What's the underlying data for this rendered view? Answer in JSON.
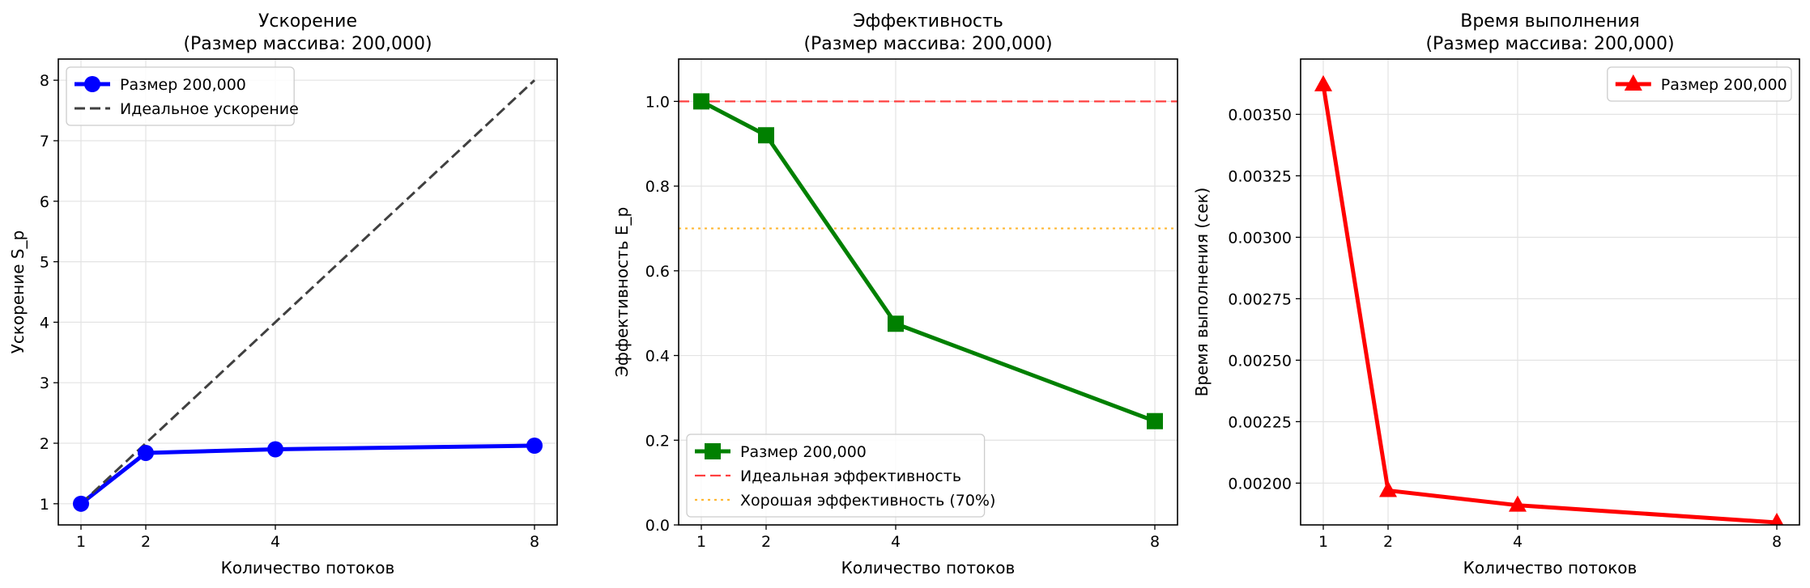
{
  "chart_data": [
    {
      "type": "line",
      "title": "Ускорение",
      "subtitle": "(Размер массива: 200,000)",
      "xlabel": "Количество потоков",
      "ylabel": "Ускорение S_p",
      "x": [
        1,
        2,
        4,
        8
      ],
      "xlim": [
        0.65,
        8.35
      ],
      "ylim": [
        0.65,
        8.35
      ],
      "xticks": [
        1,
        2,
        4,
        8
      ],
      "yticks": [
        1,
        2,
        3,
        4,
        5,
        6,
        7,
        8
      ],
      "grid": true,
      "legend_position": "upper-left",
      "series": [
        {
          "name": "Размер 200,000",
          "values": [
            1.0,
            1.84,
            1.9,
            1.96
          ],
          "color": "#0000ff",
          "style": "solid",
          "marker": "circle"
        },
        {
          "name": "Идеальное ускорение",
          "values": [
            1,
            2,
            4,
            8
          ],
          "color": "#404040",
          "style": "dashed",
          "marker": "none"
        }
      ],
      "hlines": []
    },
    {
      "type": "line",
      "title": "Эффективность",
      "subtitle": "(Размер массива: 200,000)",
      "xlabel": "Количество потоков",
      "ylabel": "Эффективность E_p",
      "x": [
        1,
        2,
        4,
        8
      ],
      "xlim": [
        0.65,
        8.35
      ],
      "ylim": [
        0.0,
        1.1
      ],
      "xticks": [
        1,
        2,
        4,
        8
      ],
      "yticks": [
        0.0,
        0.2,
        0.4,
        0.6,
        0.8,
        1.0
      ],
      "grid": true,
      "legend_position": "lower-left",
      "series": [
        {
          "name": "Размер 200,000",
          "values": [
            1.0,
            0.92,
            0.475,
            0.245
          ],
          "color": "#008000",
          "style": "solid",
          "marker": "square"
        }
      ],
      "hlines": [
        {
          "name": "Идеальная эффективность",
          "y": 1.0,
          "color": "#ff4040",
          "style": "dashed"
        },
        {
          "name": "Хорошая эффективность (70%)",
          "y": 0.7,
          "color": "#ffb833",
          "style": "dotted"
        }
      ]
    },
    {
      "type": "line",
      "title": "Время выполнения",
      "subtitle": "(Размер массива: 200,000)",
      "xlabel": "Количество потоков",
      "ylabel": "Время выполнения (сек)",
      "x": [
        1,
        2,
        4,
        8
      ],
      "xlim": [
        0.65,
        8.35
      ],
      "ylim": [
        0.00183,
        0.003725
      ],
      "xticks": [
        1,
        2,
        4,
        8
      ],
      "yticks": [
        0.002,
        0.00225,
        0.0025,
        0.00275,
        0.003,
        0.00325,
        0.0035
      ],
      "ytick_labels": [
        "0.00200",
        "0.00225",
        "0.00250",
        "0.00275",
        "0.00300",
        "0.00325",
        "0.00350"
      ],
      "grid": true,
      "legend_position": "upper-right",
      "series": [
        {
          "name": "Размер 200,000",
          "values": [
            0.00362,
            0.00197,
            0.00191,
            0.00184
          ],
          "color": "#ff0000",
          "style": "solid",
          "marker": "triangle"
        }
      ],
      "hlines": []
    }
  ]
}
